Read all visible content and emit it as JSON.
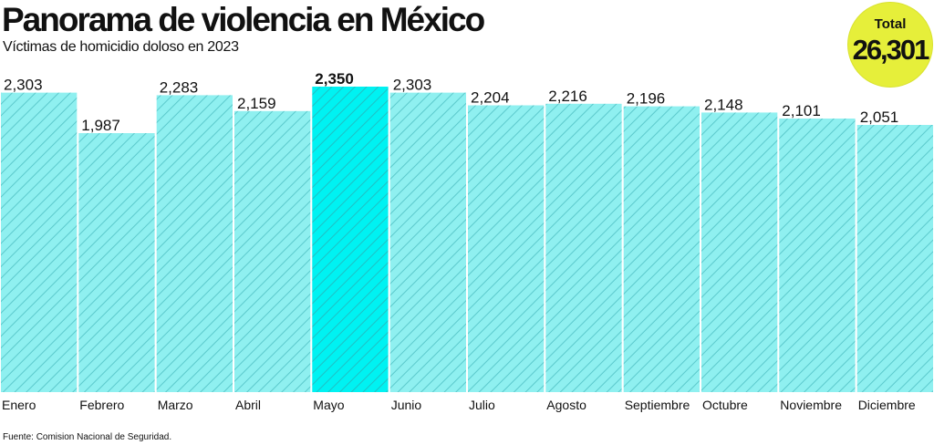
{
  "title": "Panorama de violencia en México",
  "subtitle": "Víctimas de homicidio doloso en 2023",
  "source": "Fuente: Comision Nacional de Seguridad.",
  "total": {
    "label": "Total",
    "value": "26,301"
  },
  "colors": {
    "bar_fill": "#8ff0f0",
    "bar_hatch": "#5cc9cc",
    "highlight_fill": "#00f2f2",
    "highlight_hatch": "#1fc0c4",
    "badge": "#e6ef3a"
  },
  "chart_data": {
    "type": "bar",
    "categories": [
      "Enero",
      "Febrero",
      "Marzo",
      "Abril",
      "Mayo",
      "Junio",
      "Julio",
      "Agosto",
      "Septiembre",
      "Octubre",
      "Noviembre",
      "Diciembre"
    ],
    "values": [
      2303,
      1987,
      2283,
      2159,
      2350,
      2303,
      2204,
      2216,
      2196,
      2148,
      2101,
      2051
    ],
    "value_labels": [
      "2,303",
      "1,987",
      "2,283",
      "2,159",
      "2,350",
      "2,303",
      "2,204",
      "2,216",
      "2,196",
      "2,148",
      "2,101",
      "2,051"
    ],
    "highlight_index": 4,
    "title": "Panorama de violencia en México",
    "subtitle": "Víctimas de homicidio doloso en 2023",
    "xlabel": "",
    "ylabel": "",
    "grid": false,
    "legend": "none"
  }
}
